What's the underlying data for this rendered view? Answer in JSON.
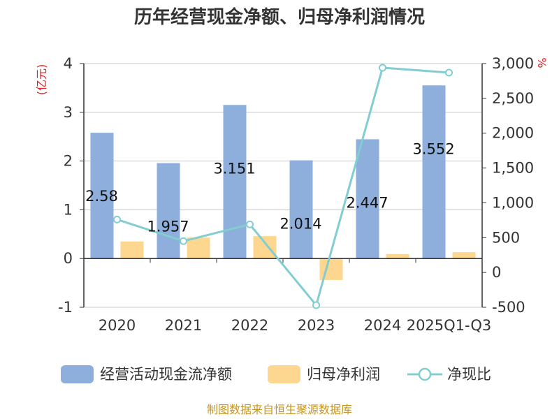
{
  "title": "历年经营现金净额、归母净利润情况",
  "source": "制图数据来自恒生聚源数据库",
  "chart_data": {
    "type": "bar",
    "title": "历年经营现金净额、归母净利润情况",
    "categories": [
      "2020",
      "2021",
      "2022",
      "2023",
      "2024",
      "2025Q1-Q3"
    ],
    "series": [
      {
        "name": "经营活动现金流净额",
        "type": "bar",
        "axis": "left",
        "color": "#8eaedb",
        "values": [
          2.58,
          1.957,
          3.151,
          2.014,
          2.447,
          3.552
        ],
        "labels": [
          "2.58",
          "1.957",
          "3.151",
          "2.014",
          "2.447",
          "3.552"
        ]
      },
      {
        "name": "归母净利润",
        "type": "bar",
        "axis": "left",
        "color": "#fdd68f",
        "values": [
          0.35,
          0.43,
          0.46,
          -0.44,
          0.09,
          0.13
        ]
      },
      {
        "name": "净现比",
        "type": "line",
        "axis": "right",
        "color": "#82cdd1",
        "values": [
          760,
          450,
          690,
          -470,
          2940,
          2870
        ]
      }
    ],
    "left_axis": {
      "unit": "(亿元)",
      "ylim": [
        -1,
        4
      ],
      "ticks": [
        "-1",
        "0",
        "1",
        "2",
        "3",
        "4"
      ]
    },
    "right_axis": {
      "unit": "%",
      "ylim": [
        -500,
        3000
      ],
      "ticks": [
        "-500",
        "0",
        "500",
        "1,000",
        "1,500",
        "2,000",
        "2,500",
        "3,000"
      ]
    },
    "grid": true,
    "legend_position": "bottom"
  }
}
